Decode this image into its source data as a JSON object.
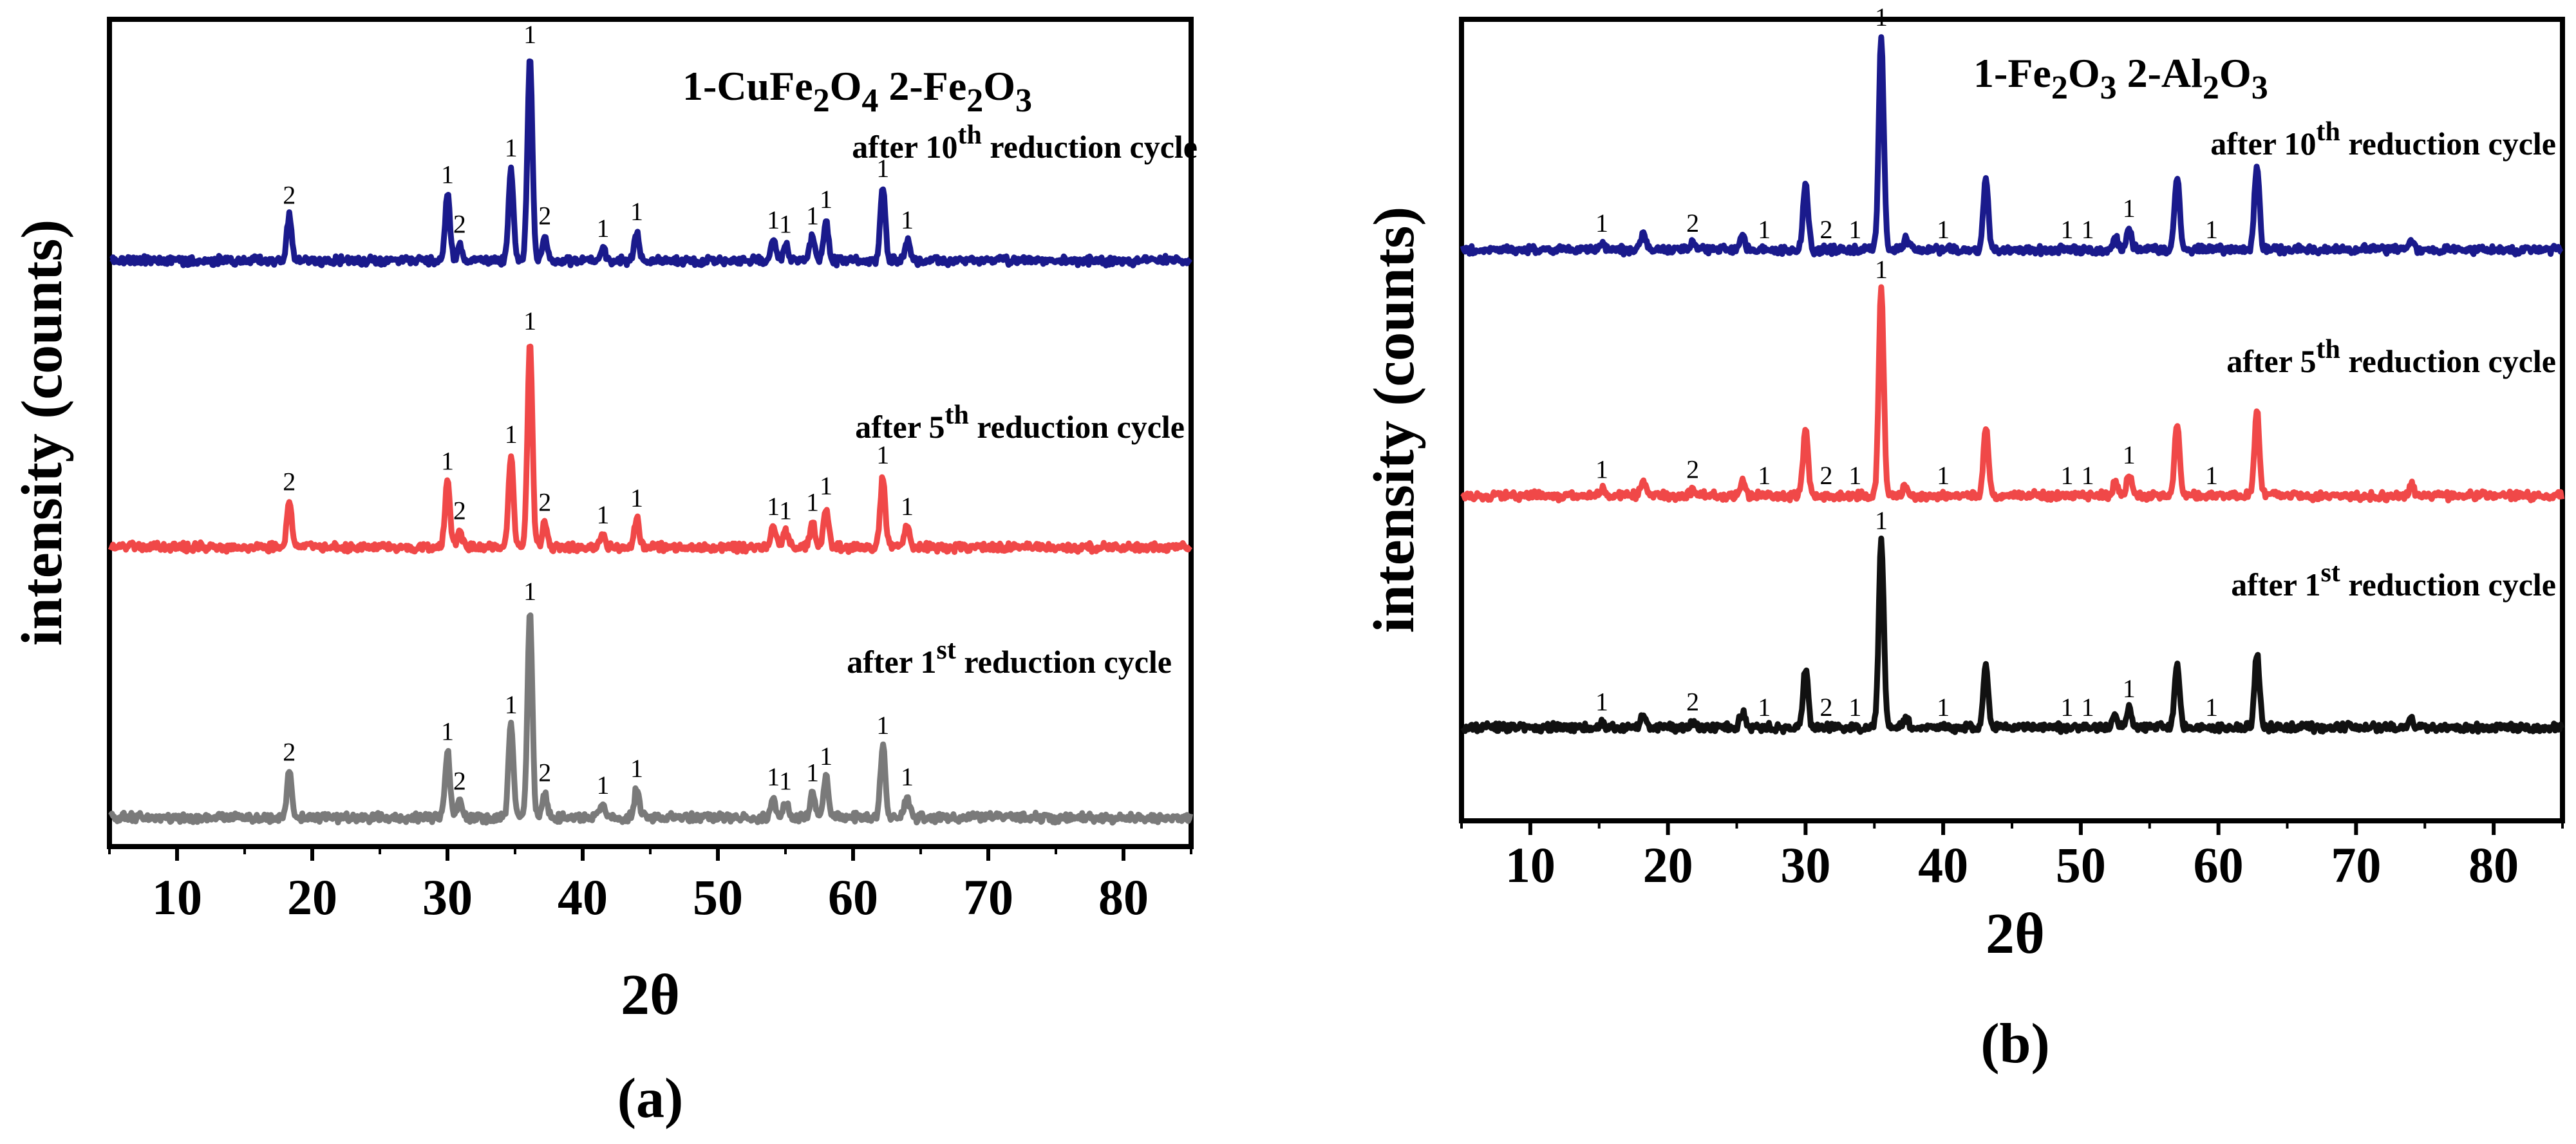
{
  "chart_data": [
    {
      "type": "line",
      "panel": "(a)",
      "xlabel": "2θ",
      "ylabel": "intensity (counts)",
      "xlim": [
        5,
        85
      ],
      "xticks": [
        10,
        20,
        30,
        40,
        50,
        60,
        70,
        80
      ],
      "legend": [
        "1-CuFe",
        "2",
        "O",
        "4",
        " 2-Fe",
        "2",
        "O",
        "3"
      ],
      "peaks": [
        {
          "x": 18.3,
          "h": 0.22,
          "label": "2"
        },
        {
          "x": 30.0,
          "h": 0.32,
          "label": "1"
        },
        {
          "x": 30.9,
          "h": 0.08,
          "label": "2"
        },
        {
          "x": 34.7,
          "h": 0.45,
          "label": "1"
        },
        {
          "x": 36.1,
          "h": 1.0,
          "label": "1"
        },
        {
          "x": 37.2,
          "h": 0.12,
          "label": "2"
        },
        {
          "x": 41.5,
          "h": 0.06,
          "label": "1"
        },
        {
          "x": 44.0,
          "h": 0.14,
          "label": "1"
        },
        {
          "x": 54.1,
          "h": 0.1,
          "label": "1"
        },
        {
          "x": 55.0,
          "h": 0.08,
          "label": "1"
        },
        {
          "x": 57.0,
          "h": 0.12,
          "label": "1"
        },
        {
          "x": 58.0,
          "h": 0.2,
          "label": "1"
        },
        {
          "x": 62.2,
          "h": 0.35,
          "label": "1"
        },
        {
          "x": 64.0,
          "h": 0.1,
          "label": "1"
        }
      ],
      "series": [
        {
          "name": "after 10th reduction cycle",
          "label_main": "after 10",
          "label_sup": "th",
          "label_tail": " reduction cycle",
          "color": "#1a1a8c"
        },
        {
          "name": "after 5th reduction cycle",
          "label_main": "after 5",
          "label_sup": "th",
          "label_tail": " reduction cycle",
          "color": "#f04848"
        },
        {
          "name": "after 1st reduction cycle",
          "label_main": "after 1",
          "label_sup": "st",
          "label_tail": " reduction cycle",
          "color": "#7a7a7a"
        }
      ],
      "panel_label": "(a)"
    },
    {
      "type": "line",
      "panel": "(b)",
      "xlabel": "2θ",
      "ylabel": "intensity (counts)",
      "xlim": [
        5,
        85
      ],
      "xticks": [
        10,
        20,
        30,
        40,
        50,
        60,
        70,
        80
      ],
      "legend": [
        "1-Fe",
        "2",
        "O",
        "3",
        " 2-Al",
        "2",
        "O",
        "3"
      ],
      "peaks": [
        {
          "x": 15.2,
          "h": 0.03,
          "label": "1"
        },
        {
          "x": 18.2,
          "h": 0.08,
          "label": ""
        },
        {
          "x": 21.8,
          "h": 0.03,
          "label": "2"
        },
        {
          "x": 25.4,
          "h": 0.08,
          "label": ""
        },
        {
          "x": 27.0,
          "h": 0.0,
          "label": "1"
        },
        {
          "x": 30.0,
          "h": 0.32,
          "label": ""
        },
        {
          "x": 31.5,
          "h": 0.0,
          "label": "2"
        },
        {
          "x": 33.6,
          "h": 0.0,
          "label": "1"
        },
        {
          "x": 35.5,
          "h": 1.0,
          "label": "1"
        },
        {
          "x": 37.3,
          "h": 0.05,
          "label": ""
        },
        {
          "x": 40.0,
          "h": 0.0,
          "label": "1"
        },
        {
          "x": 43.1,
          "h": 0.33,
          "label": ""
        },
        {
          "x": 49.0,
          "h": 0.0,
          "label": "1"
        },
        {
          "x": 50.5,
          "h": 0.0,
          "label": "1"
        },
        {
          "x": 52.5,
          "h": 0.06,
          "label": ""
        },
        {
          "x": 53.5,
          "h": 0.1,
          "label": "1"
        },
        {
          "x": 57.0,
          "h": 0.35,
          "label": ""
        },
        {
          "x": 59.5,
          "h": 0.0,
          "label": "1"
        },
        {
          "x": 62.8,
          "h": 0.4,
          "label": ""
        },
        {
          "x": 74.0,
          "h": 0.05,
          "label": ""
        }
      ],
      "series": [
        {
          "name": "after 10th reduction cycle",
          "label_main": "after 10",
          "label_sup": "th",
          "label_tail": " reduction cycle",
          "color": "#1a1a8c"
        },
        {
          "name": "after 5th reduction cycle",
          "label_main": "after 5",
          "label_sup": "th",
          "label_tail": " reduction cycle",
          "color": "#f04848"
        },
        {
          "name": "after 1st reduction cycle",
          "label_main": "after 1",
          "label_sup": "st",
          "label_tail": " reduction cycle",
          "color": "#111111"
        }
      ],
      "panel_label": "(b)"
    }
  ]
}
